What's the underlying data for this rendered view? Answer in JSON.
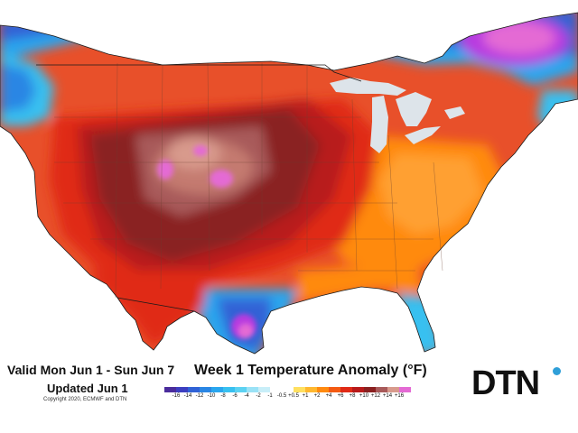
{
  "header": {
    "valid_range": "Valid Mon Jun 1 - Sun Jun 7",
    "updated": "Updated Jun 1",
    "copyright": "Copyright 2020, ECMWF and DTN",
    "title": "Week 1 Temperature Anomaly (°F)"
  },
  "logo": {
    "text": "DTN",
    "dot_color": "#2f9fd8"
  },
  "legend": {
    "ticks": [
      "-16",
      "-14",
      "-12",
      "-10",
      "-8",
      "-6",
      "-4",
      "-2",
      "-1",
      "-0.5",
      "+0.5",
      "+1",
      "+2",
      "+4",
      "+6",
      "+8",
      "+10",
      "+12",
      "+14",
      "+16"
    ],
    "colors": [
      "#4a2c9c",
      "#3c3ec0",
      "#3062d6",
      "#2a86e4",
      "#2aa6ee",
      "#38c0f0",
      "#5cd2f2",
      "#9ae2f6",
      "#c8eef8",
      "#ffffff",
      "#ffffff",
      "#ffe060",
      "#ffb830",
      "#ff8a10",
      "#f45a12",
      "#e02a16",
      "#b81a1a",
      "#8a2020",
      "#a85a5a",
      "#d89a8c",
      "#e46ad4"
    ]
  },
  "map": {
    "background": "#ffffff",
    "lakes_color": "#dde4ea",
    "border_color": "#1a1a1a",
    "state_line_color": "#6a4030"
  }
}
